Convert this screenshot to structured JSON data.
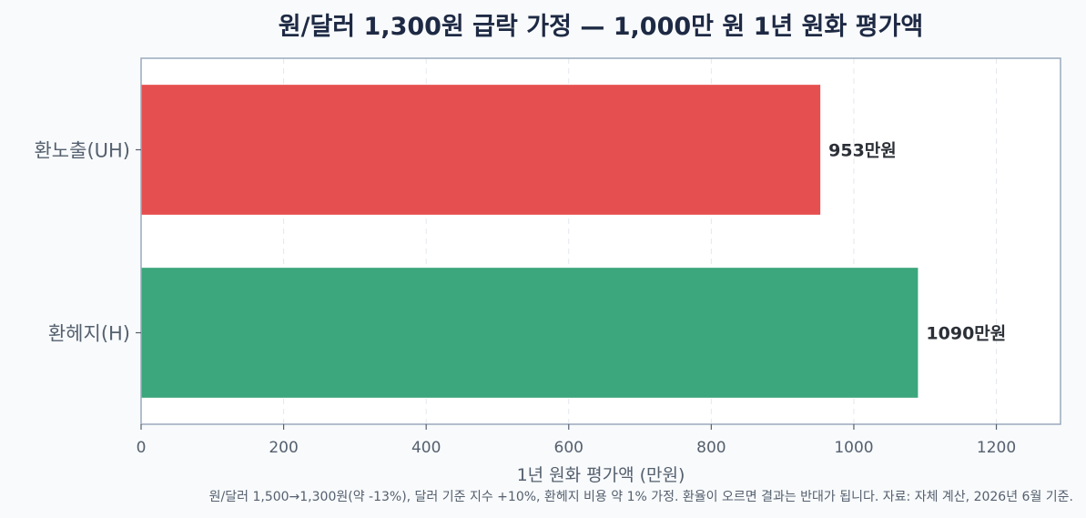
{
  "chart_data": {
    "type": "bar",
    "orientation": "horizontal",
    "title": "원/달러 1,300원 급락 가정 — 1,000만 원 1년 원화 평가액",
    "xlabel": "1년 원화 평가액 (만원)",
    "ylabel": "",
    "categories": [
      "환노출(UH)",
      "환헤지(H)"
    ],
    "values": [
      953,
      1090
    ],
    "value_labels": [
      "953만원",
      "1090만원"
    ],
    "colors": [
      "#e64f4f",
      "#3ca67c"
    ],
    "xlim": [
      0,
      1290
    ],
    "xticks": [
      0,
      200,
      400,
      600,
      800,
      1000,
      1200
    ],
    "grid": "x-dashed",
    "footnote": "원/달러 1,500→1,300원(약 -13%), 달러 기준 지수 +10%, 환헤지 비용 약 1% 가정. 환율이 오르면 결과는 반대가 됩니다. 자료: 자체 계산, 2026년 6월 기준."
  }
}
